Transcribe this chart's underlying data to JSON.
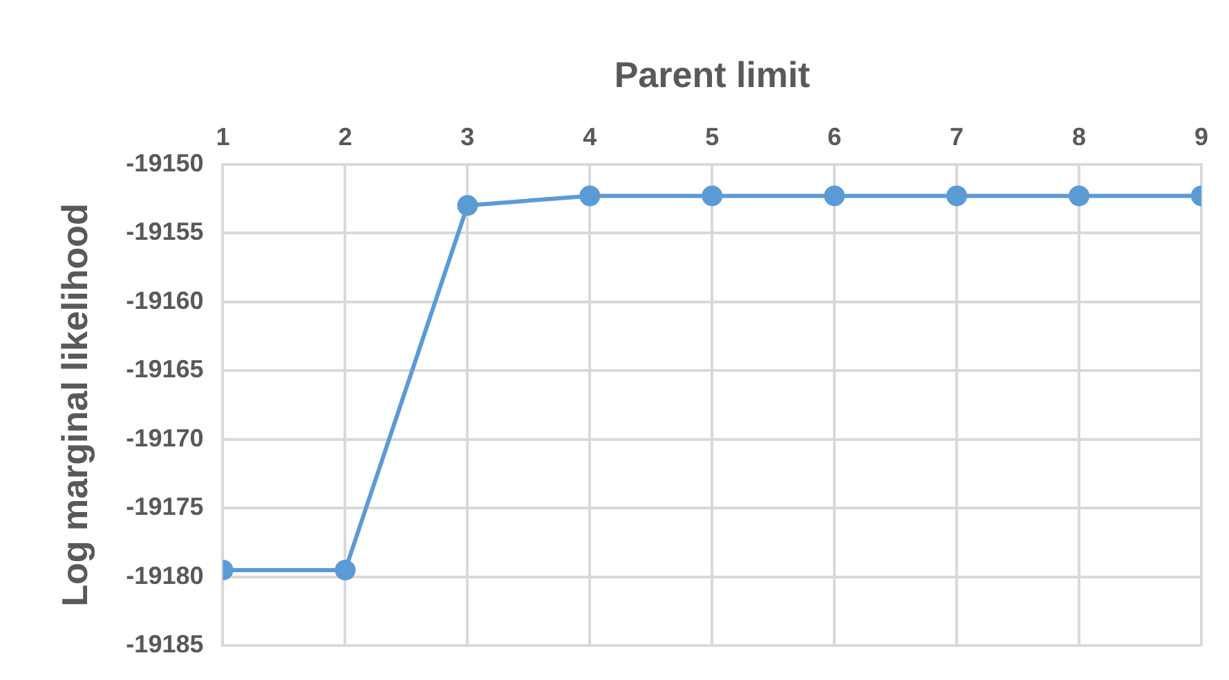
{
  "chart_data": {
    "type": "line",
    "xlabel": "Parent limit",
    "ylabel": "Log marginal likelihood",
    "x": [
      1,
      2,
      3,
      4,
      5,
      6,
      7,
      8,
      9
    ],
    "series": [
      {
        "color": "#5b9bd5",
        "values": [
          -19179.5,
          -19179.5,
          -19153.0,
          -19152.3,
          -19152.3,
          -19152.3,
          -19152.3,
          -19152.3,
          -19152.3
        ]
      }
    ],
    "xlim": [
      1,
      9
    ],
    "xticks": [
      1,
      2,
      3,
      4,
      5,
      6,
      7,
      8,
      9
    ],
    "ylim": [
      -19185,
      -19150
    ],
    "yticks": [
      -19185,
      -19180,
      -19175,
      -19170,
      -19165,
      -19160,
      -19155,
      -19150
    ],
    "grid": true,
    "legend": false,
    "marker": "circle",
    "line_style": "solid"
  }
}
